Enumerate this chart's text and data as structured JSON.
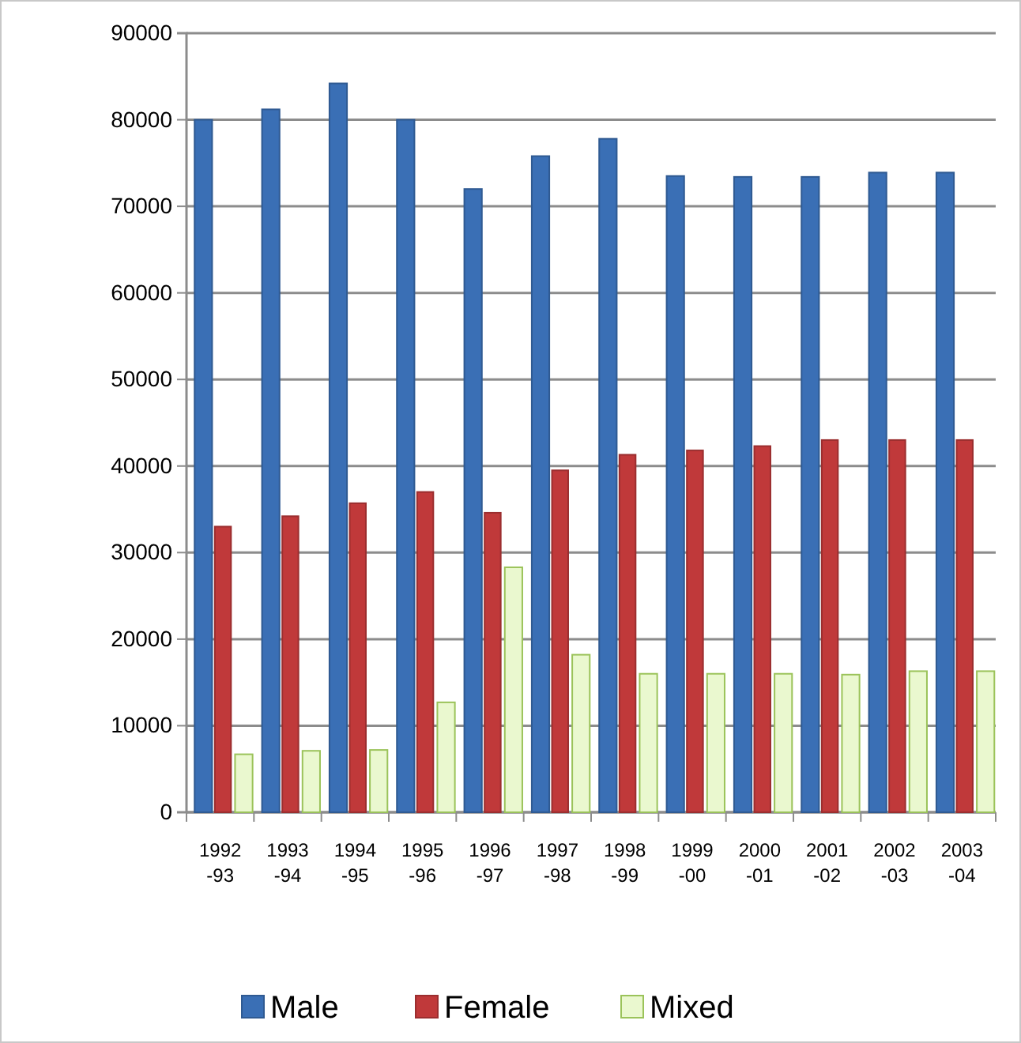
{
  "chart_data": {
    "type": "bar",
    "categories": [
      "1992-93",
      "1993-94",
      "1994-95",
      "1995-96",
      "1996-97",
      "1997-98",
      "1998-99",
      "1999-00",
      "2000-01",
      "2001-02",
      "2002-03",
      "2003-04"
    ],
    "series": [
      {
        "name": "Male",
        "color": "#3a6fb5",
        "values": [
          80000,
          81200,
          84200,
          80000,
          72000,
          75800,
          77800,
          73500,
          73400,
          73400,
          73900,
          73900
        ]
      },
      {
        "name": "Female",
        "color": "#c0393a",
        "values": [
          33000,
          34200,
          35700,
          37000,
          34600,
          39500,
          41300,
          41800,
          42300,
          43000,
          43000,
          43000
        ]
      },
      {
        "name": "Mixed",
        "color": "#eaf8cf",
        "values": [
          6700,
          7100,
          7200,
          12700,
          28300,
          18200,
          16000,
          16000,
          16000,
          15900,
          16300,
          16300
        ]
      }
    ],
    "ylim": [
      0,
      90000
    ],
    "yticks": [
      0,
      10000,
      20000,
      30000,
      40000,
      50000,
      60000,
      70000,
      80000,
      90000
    ],
    "grid": "y",
    "legend": "bottom"
  }
}
